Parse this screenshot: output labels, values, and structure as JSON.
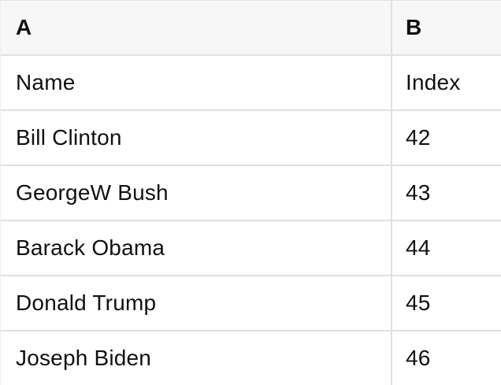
{
  "spreadsheet": {
    "column_headers": [
      "A",
      "B"
    ],
    "rows": [
      {
        "name": "Name",
        "index": "Index"
      },
      {
        "name": "Bill Clinton",
        "index": "42"
      },
      {
        "name": "GeorgeW Bush",
        "index": "43"
      },
      {
        "name": "Barack Obama",
        "index": "44"
      },
      {
        "name": "Donald Trump",
        "index": "45"
      },
      {
        "name": "Joseph Biden",
        "index": "46"
      }
    ],
    "colors": {
      "header_background": "#f7f7f7",
      "row_background": "#ffffff",
      "gridline": "#e0e0e0",
      "text": "#111111"
    }
  }
}
